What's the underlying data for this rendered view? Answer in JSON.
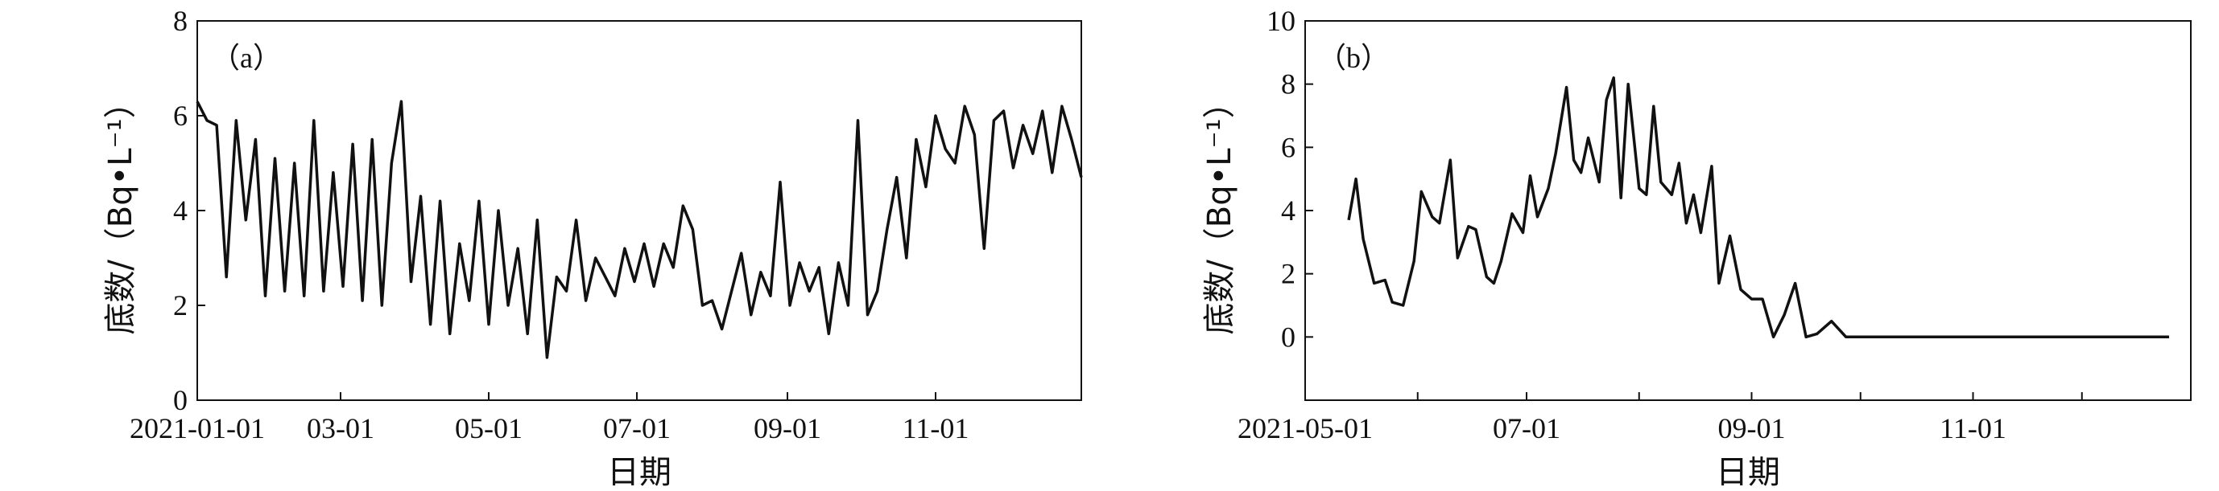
{
  "chart_data": [
    {
      "type": "line",
      "panel_label": "（a）",
      "xlabel": "日期",
      "ylabel": "底数/（Bq•L⁻¹）",
      "ylim": [
        0,
        8
      ],
      "yticks": [
        0,
        2,
        4,
        6,
        8
      ],
      "xlim": [
        "2021-01-01",
        "2021-12-31"
      ],
      "xticks": [
        {
          "date": "2021-01-01",
          "label": "2021-01-01"
        },
        {
          "date": "2021-03-01",
          "label": "03-01"
        },
        {
          "date": "2021-05-01",
          "label": "05-01"
        },
        {
          "date": "2021-07-01",
          "label": "07-01"
        },
        {
          "date": "2021-09-01",
          "label": "09-01"
        },
        {
          "date": "2021-11-01",
          "label": "11-01"
        }
      ],
      "series": [
        {
          "x": [
            "2021-01-01",
            "2021-01-05",
            "2021-01-09",
            "2021-01-13",
            "2021-01-17",
            "2021-01-21",
            "2021-01-25",
            "2021-01-29",
            "2021-02-02",
            "2021-02-06",
            "2021-02-10",
            "2021-02-14",
            "2021-02-18",
            "2021-02-22",
            "2021-02-26",
            "2021-03-02",
            "2021-03-06",
            "2021-03-10",
            "2021-03-14",
            "2021-03-18",
            "2021-03-22",
            "2021-03-26",
            "2021-03-30",
            "2021-04-03",
            "2021-04-07",
            "2021-04-11",
            "2021-04-15",
            "2021-04-19",
            "2021-04-23",
            "2021-04-27",
            "2021-05-01",
            "2021-05-05",
            "2021-05-09",
            "2021-05-13",
            "2021-05-17",
            "2021-05-21",
            "2021-05-25",
            "2021-05-29",
            "2021-06-02",
            "2021-06-06",
            "2021-06-10",
            "2021-06-14",
            "2021-06-18",
            "2021-06-22",
            "2021-06-26",
            "2021-06-30",
            "2021-07-04",
            "2021-07-08",
            "2021-07-12",
            "2021-07-16",
            "2021-07-20",
            "2021-07-24",
            "2021-07-28",
            "2021-08-01",
            "2021-08-05",
            "2021-08-09",
            "2021-08-13",
            "2021-08-17",
            "2021-08-21",
            "2021-08-25",
            "2021-08-29",
            "2021-09-02",
            "2021-09-06",
            "2021-09-10",
            "2021-09-14",
            "2021-09-18",
            "2021-09-22",
            "2021-09-26",
            "2021-09-30",
            "2021-10-04",
            "2021-10-08",
            "2021-10-12",
            "2021-10-16",
            "2021-10-20",
            "2021-10-24",
            "2021-10-28",
            "2021-11-01",
            "2021-11-05",
            "2021-11-09",
            "2021-11-13",
            "2021-11-17",
            "2021-11-21",
            "2021-11-25",
            "2021-11-29",
            "2021-12-03",
            "2021-12-07",
            "2021-12-11",
            "2021-12-15",
            "2021-12-19",
            "2021-12-23",
            "2021-12-27",
            "2021-12-31"
          ],
          "y": [
            6.3,
            5.9,
            5.8,
            2.6,
            5.9,
            3.8,
            5.5,
            2.2,
            5.1,
            2.3,
            5.0,
            2.2,
            5.9,
            2.3,
            4.8,
            2.4,
            5.4,
            2.1,
            5.5,
            2.0,
            5.0,
            6.3,
            2.5,
            4.3,
            1.6,
            4.2,
            1.4,
            3.3,
            2.1,
            4.2,
            1.6,
            4.0,
            2.0,
            3.2,
            1.4,
            3.8,
            0.9,
            2.6,
            2.3,
            3.8,
            2.1,
            3.0,
            2.6,
            2.2,
            3.2,
            2.5,
            3.3,
            2.4,
            3.3,
            2.8,
            4.1,
            3.6,
            2.0,
            2.1,
            1.5,
            2.3,
            3.1,
            1.8,
            2.7,
            2.2,
            4.6,
            2.0,
            2.9,
            2.3,
            2.8,
            1.4,
            2.9,
            2.0,
            5.9,
            1.8,
            2.3,
            3.6,
            4.7,
            3.0,
            5.5,
            4.5,
            6.0,
            5.3,
            5.0,
            6.2,
            5.6,
            3.2,
            5.9,
            6.1,
            4.9,
            5.8,
            5.2,
            6.1,
            4.8,
            6.2,
            5.5,
            4.7
          ]
        }
      ]
    },
    {
      "type": "line",
      "panel_label": "（b）",
      "xlabel": "日期",
      "ylabel": "底数/（Bq•L⁻¹）",
      "ylim": [
        -2,
        10
      ],
      "yticks": [
        0,
        2,
        4,
        6,
        8,
        10
      ],
      "xlim": [
        "2021-05-01",
        "2021-12-31"
      ],
      "xticks": [
        {
          "date": "2021-05-01",
          "label": "2021-05-01"
        },
        {
          "date": "2021-06-01",
          "label": ""
        },
        {
          "date": "2021-07-01",
          "label": "07-01"
        },
        {
          "date": "2021-08-01",
          "label": ""
        },
        {
          "date": "2021-09-01",
          "label": "09-01"
        },
        {
          "date": "2021-10-01",
          "label": ""
        },
        {
          "date": "2021-11-01",
          "label": "11-01"
        },
        {
          "date": "2021-12-01",
          "label": ""
        }
      ],
      "series": [
        {
          "x": [
            "2021-05-13",
            "2021-05-15",
            "2021-05-17",
            "2021-05-20",
            "2021-05-23",
            "2021-05-25",
            "2021-05-28",
            "2021-05-31",
            "2021-06-02",
            "2021-06-05",
            "2021-06-07",
            "2021-06-10",
            "2021-06-12",
            "2021-06-15",
            "2021-06-17",
            "2021-06-20",
            "2021-06-22",
            "2021-06-24",
            "2021-06-27",
            "2021-06-30",
            "2021-07-02",
            "2021-07-04",
            "2021-07-07",
            "2021-07-09",
            "2021-07-12",
            "2021-07-14",
            "2021-07-16",
            "2021-07-18",
            "2021-07-21",
            "2021-07-23",
            "2021-07-25",
            "2021-07-27",
            "2021-07-29",
            "2021-08-01",
            "2021-08-03",
            "2021-08-05",
            "2021-08-07",
            "2021-08-10",
            "2021-08-12",
            "2021-08-14",
            "2021-08-16",
            "2021-08-18",
            "2021-08-21",
            "2021-08-23",
            "2021-08-26",
            "2021-08-29",
            "2021-09-01",
            "2021-09-04",
            "2021-09-07",
            "2021-09-10",
            "2021-09-13",
            "2021-09-16",
            "2021-09-19",
            "2021-09-23",
            "2021-09-27",
            "2021-10-01",
            "2021-10-15",
            "2021-11-01",
            "2021-11-15",
            "2021-12-01",
            "2021-12-25"
          ],
          "y": [
            3.7,
            5.0,
            3.1,
            1.7,
            1.8,
            1.1,
            1.0,
            2.4,
            4.6,
            3.8,
            3.6,
            5.6,
            2.5,
            3.5,
            3.4,
            1.9,
            1.7,
            2.4,
            3.9,
            3.3,
            5.1,
            3.8,
            4.7,
            5.8,
            7.9,
            5.6,
            5.2,
            6.3,
            4.9,
            7.5,
            8.2,
            4.4,
            8.0,
            4.7,
            4.5,
            7.3,
            4.9,
            4.5,
            5.5,
            3.6,
            4.5,
            3.3,
            5.4,
            1.7,
            3.2,
            1.5,
            1.2,
            1.2,
            0.0,
            0.7,
            1.7,
            0.0,
            0.1,
            0.5,
            0.0,
            0.0,
            0.0,
            0.0,
            0.0,
            0.0,
            0.0
          ]
        }
      ]
    }
  ]
}
